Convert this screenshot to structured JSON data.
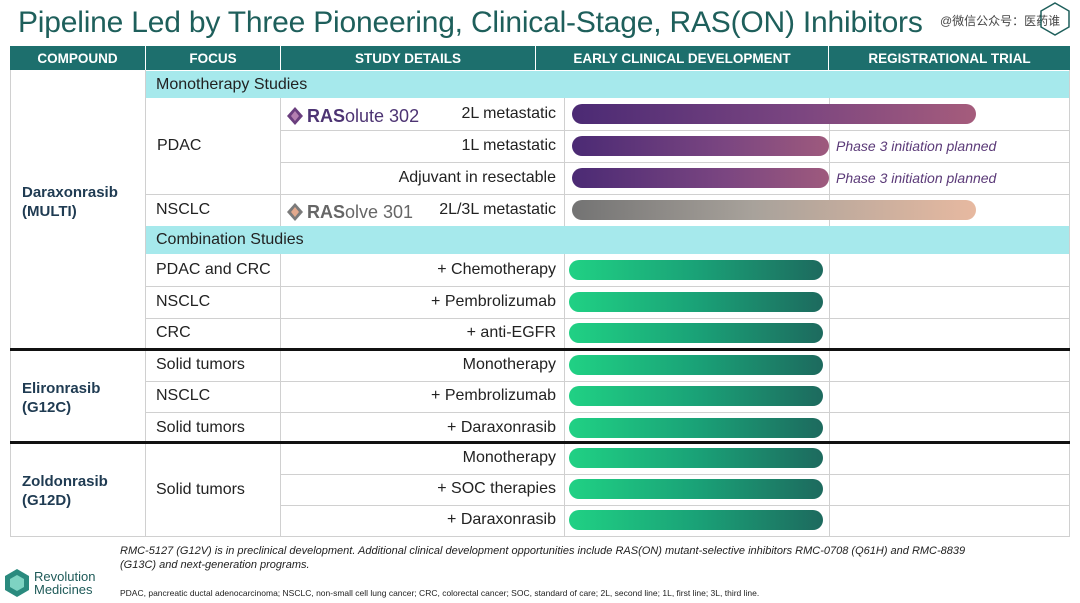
{
  "title": "Pipeline Led by Three Pioneering, Clinical-Stage, RAS(ON) Inhibitors",
  "watermark": "@微信公众号：医药谁",
  "headers": {
    "compound": "COMPOUND",
    "focus": "FOCUS",
    "study_details": "STUDY DETAILS",
    "early": "EARLY CLINICAL DEVELOPMENT",
    "registrational": "REGISTRATIONAL TRIAL"
  },
  "sections": {
    "monotherapy": "Monotherapy Studies",
    "combination": "Combination Studies"
  },
  "compounds": {
    "daraxonrasib": {
      "name": "Daraxonrasib",
      "target": "(MULTI)"
    },
    "elironrasib": {
      "name": "Elironrasib",
      "target": "(G12C)"
    },
    "zoldonrasib": {
      "name": "Zoldonrasib",
      "target": "(G12D)"
    }
  },
  "trials": {
    "rasolute": {
      "bold": "RAS",
      "rest": "olute 302"
    },
    "rasolve": {
      "bold": "RAS",
      "rest": "olve 301"
    }
  },
  "rows": {
    "mono_pdac_focus": "PDAC",
    "mono_pdac_2l": "2L metastatic",
    "mono_pdac_1l": "1L metastatic",
    "mono_pdac_adj": "Adjuvant in resectable",
    "mono_nsclc_focus": "NSCLC",
    "mono_nsclc_detail": "2L/3L metastatic",
    "combo1_focus": "PDAC and CRC",
    "combo1_detail": "+ Chemotherapy",
    "combo2_focus": "NSCLC",
    "combo2_detail": "+ Pembrolizumab",
    "combo3_focus": "CRC",
    "combo3_detail": "+ anti-EGFR",
    "el1_focus": "Solid tumors",
    "el1_detail": "Monotherapy",
    "el2_focus": "NSCLC",
    "el2_detail": "+ Pembrolizumab",
    "el3_focus": "Solid tumors",
    "el3_detail": "+ Daraxonrasib",
    "zo_focus": "Solid tumors",
    "zo1_detail": "Monotherapy",
    "zo2_detail": "+ SOC therapies",
    "zo3_detail": "+ Daraxonrasib"
  },
  "phase3_note": "Phase 3 initiation planned",
  "footnote_main": "RMC-5127 (G12V) is in preclinical development. Additional clinical development opportunities include RAS(ON) mutant-selective inhibitors RMC-0708 (Q61H) and RMC-8839 (G13C) and next-generation programs.",
  "footnote_abbrev": "PDAC, pancreatic ductal adenocarcinoma; NSCLC, non-small cell lung cancer; CRC, colorectal cancer; SOC, standard of care; 2L, second line; 1L, first line; 3L, third line.",
  "brand": {
    "line1": "Revolution",
    "line2": "Medicines"
  },
  "colors": {
    "header_bg": "#1d6f6d",
    "section_band": "#a6e9ec",
    "mono_bar": "#4b2a74",
    "nsclc_mono_bar": "#737373",
    "combo_bar": "#20d184",
    "title": "#1e5f5b"
  }
}
